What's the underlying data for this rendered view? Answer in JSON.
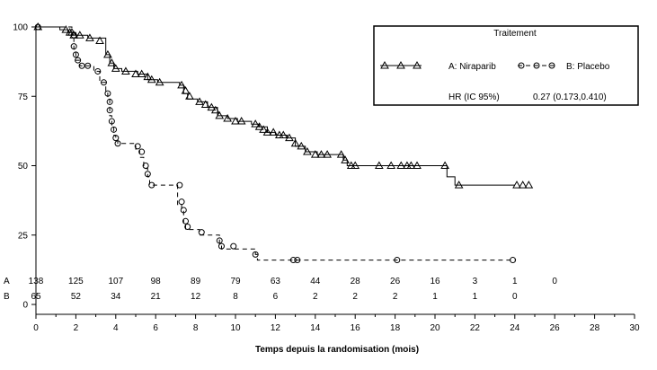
{
  "chart_data": {
    "type": "km_step",
    "title": "",
    "xlabel": "Temps depuis la randomisation (mois)",
    "ylabel": "",
    "xlim": [
      0,
      30
    ],
    "ylim": [
      0,
      100
    ],
    "xticks": [
      0,
      2,
      4,
      6,
      8,
      10,
      12,
      14,
      16,
      18,
      20,
      22,
      24,
      26,
      28,
      30
    ],
    "yticks": [
      0,
      25,
      50,
      75,
      100
    ],
    "grid": false,
    "legend": {
      "title": "Traitement",
      "placement": "top-right",
      "hr_label": "HR (IC 95%)",
      "hr_value": "0.27 (0.173,0.410)"
    },
    "series": [
      {
        "name": "A: Niraparib",
        "line": "solid",
        "marker": "triangle",
        "color": "#000000",
        "steps": [
          [
            0,
            100
          ],
          [
            1.2,
            100
          ],
          [
            1.2,
            99
          ],
          [
            1.6,
            99
          ],
          [
            1.6,
            98
          ],
          [
            2.0,
            98
          ],
          [
            2.0,
            97
          ],
          [
            2.6,
            97
          ],
          [
            2.6,
            96
          ],
          [
            3.5,
            96
          ],
          [
            3.5,
            90
          ],
          [
            3.7,
            90
          ],
          [
            3.7,
            87
          ],
          [
            3.9,
            87
          ],
          [
            3.9,
            85
          ],
          [
            4.3,
            85
          ],
          [
            4.3,
            84
          ],
          [
            5.1,
            84
          ],
          [
            5.1,
            83
          ],
          [
            5.6,
            83
          ],
          [
            5.6,
            81
          ],
          [
            6.1,
            81
          ],
          [
            6.1,
            80
          ],
          [
            7.2,
            80
          ],
          [
            7.2,
            79
          ],
          [
            7.4,
            79
          ],
          [
            7.4,
            76
          ],
          [
            7.6,
            76
          ],
          [
            7.6,
            74
          ],
          [
            8.1,
            74
          ],
          [
            8.1,
            73
          ],
          [
            8.6,
            73
          ],
          [
            8.6,
            71
          ],
          [
            9.1,
            71
          ],
          [
            9.1,
            68
          ],
          [
            9.6,
            68
          ],
          [
            9.6,
            67
          ],
          [
            10.1,
            67
          ],
          [
            10.1,
            66
          ],
          [
            10.8,
            66
          ],
          [
            10.8,
            65
          ],
          [
            11.2,
            65
          ],
          [
            11.2,
            64
          ],
          [
            11.6,
            64
          ],
          [
            11.6,
            62
          ],
          [
            12.0,
            62
          ],
          [
            12.0,
            61
          ],
          [
            12.6,
            61
          ],
          [
            12.6,
            60
          ],
          [
            13.0,
            60
          ],
          [
            13.0,
            57
          ],
          [
            13.5,
            57
          ],
          [
            13.5,
            55
          ],
          [
            14.1,
            55
          ],
          [
            14.1,
            54
          ],
          [
            15.4,
            54
          ],
          [
            15.4,
            52
          ],
          [
            15.6,
            52
          ],
          [
            15.6,
            50
          ],
          [
            20.6,
            50
          ],
          [
            20.6,
            46
          ],
          [
            21.0,
            46
          ],
          [
            21.0,
            43
          ],
          [
            24.0,
            43
          ]
        ],
        "censored": [
          [
            0.1,
            100
          ],
          [
            1.5,
            99
          ],
          [
            1.7,
            98
          ],
          [
            1.8,
            98
          ],
          [
            1.9,
            97
          ],
          [
            2.2,
            97
          ],
          [
            2.7,
            96
          ],
          [
            3.2,
            95
          ],
          [
            3.6,
            90
          ],
          [
            3.8,
            87
          ],
          [
            4.0,
            85
          ],
          [
            4.5,
            84
          ],
          [
            5.0,
            83
          ],
          [
            5.3,
            83
          ],
          [
            5.6,
            82
          ],
          [
            5.8,
            81
          ],
          [
            6.2,
            80
          ],
          [
            7.3,
            79
          ],
          [
            7.5,
            77
          ],
          [
            7.7,
            75
          ],
          [
            8.2,
            73
          ],
          [
            8.5,
            72
          ],
          [
            8.8,
            71
          ],
          [
            9.0,
            70
          ],
          [
            9.2,
            68
          ],
          [
            9.6,
            67
          ],
          [
            10.0,
            66
          ],
          [
            10.3,
            66
          ],
          [
            11.0,
            65
          ],
          [
            11.2,
            64
          ],
          [
            11.4,
            63
          ],
          [
            11.6,
            62
          ],
          [
            11.9,
            62
          ],
          [
            12.2,
            61
          ],
          [
            12.4,
            61
          ],
          [
            12.7,
            60
          ],
          [
            13.0,
            58
          ],
          [
            13.3,
            57
          ],
          [
            13.6,
            55
          ],
          [
            14.0,
            54
          ],
          [
            14.3,
            54
          ],
          [
            14.6,
            54
          ],
          [
            15.3,
            54
          ],
          [
            15.5,
            52
          ],
          [
            15.8,
            50
          ],
          [
            16.0,
            50
          ],
          [
            17.2,
            50
          ],
          [
            17.8,
            50
          ],
          [
            18.3,
            50
          ],
          [
            18.6,
            50
          ],
          [
            18.8,
            50
          ],
          [
            19.1,
            50
          ],
          [
            20.5,
            50
          ],
          [
            21.2,
            43
          ],
          [
            24.1,
            43
          ],
          [
            24.4,
            43
          ],
          [
            24.7,
            43
          ]
        ]
      },
      {
        "name": "B: Placebo",
        "line": "dashed",
        "marker": "circle",
        "color": "#000000",
        "steps": [
          [
            0,
            100
          ],
          [
            1.8,
            100
          ],
          [
            1.8,
            96
          ],
          [
            1.9,
            96
          ],
          [
            1.9,
            92
          ],
          [
            2.0,
            92
          ],
          [
            2.0,
            88
          ],
          [
            2.2,
            88
          ],
          [
            2.2,
            86
          ],
          [
            2.9,
            86
          ],
          [
            2.9,
            84
          ],
          [
            3.2,
            84
          ],
          [
            3.2,
            80
          ],
          [
            3.5,
            80
          ],
          [
            3.5,
            77
          ],
          [
            3.6,
            77
          ],
          [
            3.6,
            74
          ],
          [
            3.7,
            74
          ],
          [
            3.7,
            68
          ],
          [
            3.8,
            68
          ],
          [
            3.8,
            64
          ],
          [
            3.9,
            64
          ],
          [
            3.9,
            61
          ],
          [
            4.0,
            61
          ],
          [
            4.0,
            59
          ],
          [
            4.1,
            59
          ],
          [
            4.1,
            58
          ],
          [
            5.0,
            58
          ],
          [
            5.0,
            56
          ],
          [
            5.2,
            56
          ],
          [
            5.2,
            53
          ],
          [
            5.4,
            53
          ],
          [
            5.4,
            49
          ],
          [
            5.6,
            49
          ],
          [
            5.6,
            46
          ],
          [
            5.7,
            46
          ],
          [
            5.7,
            43
          ],
          [
            7.1,
            43
          ],
          [
            7.1,
            36
          ],
          [
            7.3,
            36
          ],
          [
            7.3,
            34
          ],
          [
            7.4,
            34
          ],
          [
            7.4,
            29
          ],
          [
            7.5,
            29
          ],
          [
            7.5,
            27
          ],
          [
            8.2,
            27
          ],
          [
            8.2,
            25
          ],
          [
            9.2,
            25
          ],
          [
            9.2,
            22
          ],
          [
            9.3,
            22
          ],
          [
            9.3,
            20
          ],
          [
            11.0,
            20
          ],
          [
            11.0,
            18
          ],
          [
            11.1,
            18
          ],
          [
            11.1,
            16
          ],
          [
            24.0,
            16
          ]
        ],
        "censored": [
          [
            0.1,
            100
          ],
          [
            1.9,
            97
          ],
          [
            1.9,
            93
          ],
          [
            2.0,
            90
          ],
          [
            2.1,
            88
          ],
          [
            2.3,
            86
          ],
          [
            2.6,
            86
          ],
          [
            3.1,
            84
          ],
          [
            3.4,
            80
          ],
          [
            3.6,
            76
          ],
          [
            3.7,
            73
          ],
          [
            3.7,
            70
          ],
          [
            3.8,
            66
          ],
          [
            3.9,
            63
          ],
          [
            4.0,
            60
          ],
          [
            4.1,
            58
          ],
          [
            5.1,
            57
          ],
          [
            5.3,
            55
          ],
          [
            5.5,
            50
          ],
          [
            5.6,
            47
          ],
          [
            5.8,
            43
          ],
          [
            7.2,
            43
          ],
          [
            7.3,
            37
          ],
          [
            7.4,
            34
          ],
          [
            7.5,
            30
          ],
          [
            7.6,
            28
          ],
          [
            8.3,
            26
          ],
          [
            9.2,
            23
          ],
          [
            9.3,
            21
          ],
          [
            9.9,
            21
          ],
          [
            11.0,
            18
          ],
          [
            12.9,
            16
          ],
          [
            13.1,
            16
          ],
          [
            18.1,
            16
          ],
          [
            23.9,
            16
          ]
        ]
      }
    ],
    "risk_table": {
      "rows": [
        {
          "label": "A",
          "values": [
            {
              "x": 0,
              "v": "138"
            },
            {
              "x": 2,
              "v": "125"
            },
            {
              "x": 4,
              "v": "107"
            },
            {
              "x": 6,
              "v": "98"
            },
            {
              "x": 8,
              "v": "89"
            },
            {
              "x": 10,
              "v": "79"
            },
            {
              "x": 12,
              "v": "63"
            },
            {
              "x": 14,
              "v": "44"
            },
            {
              "x": 16,
              "v": "28"
            },
            {
              "x": 18,
              "v": "26"
            },
            {
              "x": 20,
              "v": "16"
            },
            {
              "x": 22,
              "v": "3"
            },
            {
              "x": 24,
              "v": "1"
            },
            {
              "x": 26,
              "v": "0"
            }
          ]
        },
        {
          "label": "B",
          "values": [
            {
              "x": 0,
              "v": "65"
            },
            {
              "x": 2,
              "v": "52"
            },
            {
              "x": 4,
              "v": "34"
            },
            {
              "x": 6,
              "v": "21"
            },
            {
              "x": 8,
              "v": "12"
            },
            {
              "x": 10,
              "v": "8"
            },
            {
              "x": 12,
              "v": "6"
            },
            {
              "x": 14,
              "v": "2"
            },
            {
              "x": 16,
              "v": "2"
            },
            {
              "x": 18,
              "v": "2"
            },
            {
              "x": 20,
              "v": "1"
            },
            {
              "x": 22,
              "v": "1"
            },
            {
              "x": 24,
              "v": "0"
            }
          ]
        }
      ]
    }
  }
}
